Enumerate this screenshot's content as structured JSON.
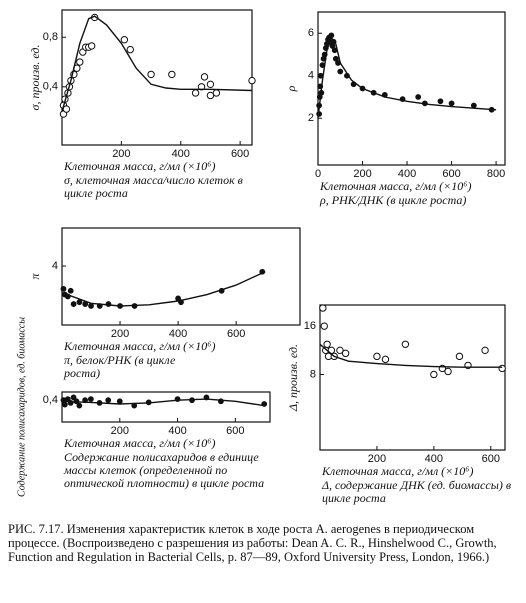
{
  "chart_data": [
    {
      "type": "scatter",
      "ylabel": "σ, произв. ед.",
      "xlabel": "Клеточная масса, г/мл (×10⁶)",
      "caption": "σ, клеточная масса/число клеток в цикле роста",
      "xlim": [
        0,
        640
      ],
      "ylim": [
        -0.07,
        1.02
      ],
      "xticks": [
        200,
        400,
        600
      ],
      "yticks": [
        {
          "value": 0.4,
          "label": "0,4"
        },
        {
          "value": 0.8,
          "label": "0,8"
        }
      ],
      "series": [
        {
          "style": "open",
          "x": [
            5,
            5,
            10,
            15,
            20,
            25,
            30,
            40,
            50,
            60,
            70,
            80,
            90,
            100,
            110,
            210,
            230,
            300,
            370,
            450,
            470,
            480,
            500,
            500,
            520,
            640
          ],
          "values": [
            0.18,
            0.25,
            0.3,
            0.22,
            0.35,
            0.4,
            0.45,
            0.5,
            0.55,
            0.6,
            0.68,
            0.72,
            0.72,
            0.73,
            0.96,
            0.78,
            0.7,
            0.5,
            0.5,
            0.35,
            0.4,
            0.48,
            0.42,
            0.33,
            0.35,
            0.45
          ]
        },
        {
          "style": "line",
          "x": [
            0,
            30,
            60,
            90,
            110,
            150,
            200,
            250,
            300,
            350,
            400,
            500,
            640
          ],
          "values": [
            0.2,
            0.45,
            0.75,
            0.95,
            0.97,
            0.9,
            0.75,
            0.55,
            0.42,
            0.39,
            0.38,
            0.38,
            0.37
          ]
        }
      ]
    },
    {
      "type": "scatter",
      "ylabel": "ρ",
      "xlabel": "Клеточная масса, г/мл (×10⁶)",
      "caption": "ρ, РНК/ДНК (в цикле роста)",
      "xlim": [
        0,
        840
      ],
      "ylim": [
        -0.2,
        7
      ],
      "xticks": [
        0,
        200,
        400,
        600,
        800
      ],
      "yticks": [
        2,
        4,
        6
      ],
      "series": [
        {
          "style": "filled",
          "x": [
            5,
            5,
            8,
            10,
            12,
            15,
            20,
            25,
            30,
            35,
            40,
            45,
            50,
            55,
            60,
            65,
            70,
            75,
            80,
            90,
            100,
            130,
            160,
            200,
            250,
            300,
            380,
            450,
            480,
            550,
            600,
            700,
            780
          ],
          "values": [
            2.2,
            2.6,
            3.0,
            3.5,
            4.0,
            3.2,
            4.5,
            4.8,
            5.0,
            5.3,
            5.5,
            5.7,
            5.8,
            5.6,
            5.9,
            5.4,
            5.6,
            5.2,
            4.8,
            4.6,
            4.2,
            4.0,
            3.6,
            3.4,
            3.2,
            3.1,
            2.9,
            3.0,
            2.7,
            2.8,
            2.7,
            2.6,
            2.4
          ]
        },
        {
          "style": "line",
          "x": [
            0,
            20,
            40,
            60,
            80,
            100,
            150,
            200,
            300,
            400,
            500,
            600,
            800
          ],
          "values": [
            2.0,
            3.8,
            5.2,
            5.8,
            5.5,
            4.6,
            3.8,
            3.4,
            3.0,
            2.8,
            2.65,
            2.55,
            2.4
          ]
        }
      ]
    },
    {
      "type": "scatter",
      "ylabel": "π",
      "xlabel": "Клеточная масса, г/мл (×10⁶)",
      "caption": "π, белок/РНК (в цикле роста)",
      "xlim": [
        0,
        820
      ],
      "ylim": [
        2.45,
        5
      ],
      "xticks": [
        200,
        400,
        600
      ],
      "yticks": [
        4
      ],
      "series": [
        {
          "style": "filled",
          "x": [
            5,
            10,
            20,
            30,
            40,
            60,
            80,
            100,
            130,
            160,
            200,
            250,
            400,
            410,
            550,
            690
          ],
          "values": [
            3.4,
            3.25,
            3.2,
            3.35,
            3.0,
            3.05,
            3.0,
            2.95,
            2.95,
            3.0,
            2.95,
            2.95,
            3.15,
            3.05,
            3.35,
            3.85
          ]
        },
        {
          "style": "line",
          "x": [
            0,
            100,
            200,
            300,
            400,
            500,
            600,
            700
          ],
          "values": [
            3.3,
            3.02,
            2.95,
            2.98,
            3.08,
            3.25,
            3.5,
            3.85
          ]
        }
      ]
    },
    {
      "type": "scatter",
      "ylabel": "Содержание полисахаридов, ед. биомассы",
      "xlabel": "Клеточная масса, г/мл (×10⁶)",
      "caption": "Содержание полисахаридов в единице массы клеток (определенной по оптической плотности) в цикле роста",
      "xlim": [
        0,
        720
      ],
      "ylim": [
        0,
        0.55
      ],
      "xticks": [
        200,
        400,
        600
      ],
      "yticks": [
        {
          "value": 0.4,
          "label": "0,4"
        }
      ],
      "series": [
        {
          "style": "filled",
          "x": [
            5,
            10,
            20,
            30,
            40,
            50,
            60,
            80,
            100,
            130,
            160,
            200,
            250,
            300,
            400,
            450,
            500,
            550,
            700
          ],
          "values": [
            0.4,
            0.32,
            0.42,
            0.35,
            0.45,
            0.38,
            0.3,
            0.4,
            0.42,
            0.35,
            0.4,
            0.38,
            0.3,
            0.36,
            0.42,
            0.4,
            0.45,
            0.38,
            0.33
          ]
        },
        {
          "style": "line",
          "x": [
            0,
            100,
            200,
            300,
            400,
            500,
            600,
            700
          ],
          "values": [
            0.38,
            0.36,
            0.33,
            0.35,
            0.4,
            0.42,
            0.38,
            0.3
          ]
        }
      ]
    },
    {
      "type": "scatter",
      "ylabel": "Δ, произв. ед.",
      "xlabel": "Клеточная масса, г/мл (×10⁶)",
      "caption": "Δ, содержание ДНК (ед. биомассы) в цикле роста",
      "xlim": [
        0,
        650
      ],
      "ylim": [
        -4.5,
        19.5
      ],
      "xticks": [
        200,
        400,
        600
      ],
      "yticks": [
        8,
        16
      ],
      "series": [
        {
          "style": "open",
          "x": [
            10,
            15,
            20,
            25,
            30,
            40,
            50,
            70,
            90,
            200,
            230,
            300,
            400,
            430,
            450,
            490,
            520,
            580,
            640
          ],
          "values": [
            19,
            16,
            12,
            13,
            11,
            12,
            11,
            12,
            11.5,
            11,
            10.5,
            13,
            8,
            9,
            8.5,
            11,
            9.5,
            12,
            9
          ]
        },
        {
          "style": "line",
          "x": [
            0,
            50,
            100,
            200,
            300,
            400,
            500,
            640
          ],
          "values": [
            13,
            11,
            10.2,
            9.8,
            9.5,
            9.3,
            9.2,
            9.2
          ]
        }
      ]
    }
  ],
  "caption": "РИС. 7.17. Изменения характеристик клеток в ходе роста A. aerogenes в периодическом процессе. (Воспроизведено с разрешения из работы: Dean A. C. R., Hinshelwood C., Growth, Function and Regulation in Bacterial Cells, p. 87—89, Oxford University Press, London, 1966.)"
}
